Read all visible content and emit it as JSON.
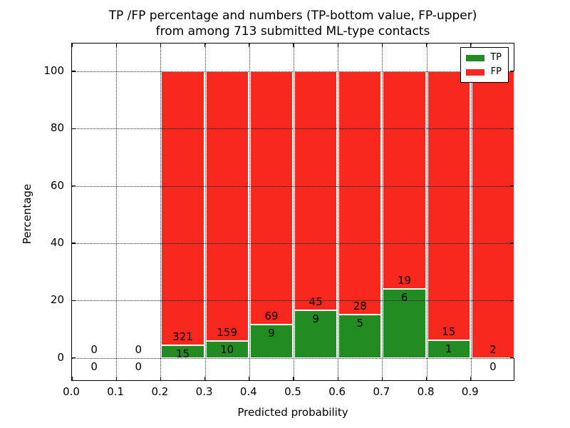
{
  "chart_data": {
    "type": "bar",
    "stacked": true,
    "title_lines": [
      "TP /FP percentage and numbers (TP-bottom value, FP-upper)",
      "from among 713 submitted ML-type contacts"
    ],
    "xlabel": "Predicted probability",
    "ylabel": "Percentage",
    "total_contacts": 713,
    "xlim": [
      0.0,
      1.0
    ],
    "ylim": [
      -8.3,
      109.7
    ],
    "grid": true,
    "x_ticks": [
      {
        "value": 0.0,
        "label": "0.0"
      },
      {
        "value": 0.1,
        "label": "0.1"
      },
      {
        "value": 0.2,
        "label": "0.2"
      },
      {
        "value": 0.3,
        "label": "0.3"
      },
      {
        "value": 0.4,
        "label": "0.4"
      },
      {
        "value": 0.5,
        "label": "0.5"
      },
      {
        "value": 0.6,
        "label": "0.6"
      },
      {
        "value": 0.7,
        "label": "0.7"
      },
      {
        "value": 0.8,
        "label": "0.8"
      },
      {
        "value": 0.9,
        "label": "0.9"
      }
    ],
    "y_ticks": [
      {
        "value": 0,
        "label": "0"
      },
      {
        "value": 20,
        "label": "20"
      },
      {
        "value": 40,
        "label": "40"
      },
      {
        "value": 60,
        "label": "60"
      },
      {
        "value": 80,
        "label": "80"
      },
      {
        "value": 100,
        "label": "100"
      }
    ],
    "bins": [
      {
        "range": [
          0.0,
          0.1
        ],
        "tp": 0,
        "fp": 0
      },
      {
        "range": [
          0.1,
          0.2
        ],
        "tp": 0,
        "fp": 0
      },
      {
        "range": [
          0.2,
          0.3
        ],
        "tp": 15,
        "fp": 321
      },
      {
        "range": [
          0.3,
          0.4
        ],
        "tp": 10,
        "fp": 159
      },
      {
        "range": [
          0.4,
          0.5
        ],
        "tp": 9,
        "fp": 69
      },
      {
        "range": [
          0.5,
          0.6
        ],
        "tp": 9,
        "fp": 45
      },
      {
        "range": [
          0.6,
          0.7
        ],
        "tp": 5,
        "fp": 28
      },
      {
        "range": [
          0.7,
          0.8
        ],
        "tp": 6,
        "fp": 19
      },
      {
        "range": [
          0.8,
          0.9
        ],
        "tp": 1,
        "fp": 15
      },
      {
        "range": [
          0.9,
          1.0
        ],
        "tp": 0,
        "fp": 2
      }
    ],
    "colors": {
      "tp": "#228b22",
      "fp": "#f8281e",
      "edge": "#ffffff"
    },
    "legend": {
      "position": "upper right",
      "items": [
        {
          "label": "TP",
          "color": "#228b22"
        },
        {
          "label": "FP",
          "color": "#f8281e"
        }
      ]
    }
  }
}
